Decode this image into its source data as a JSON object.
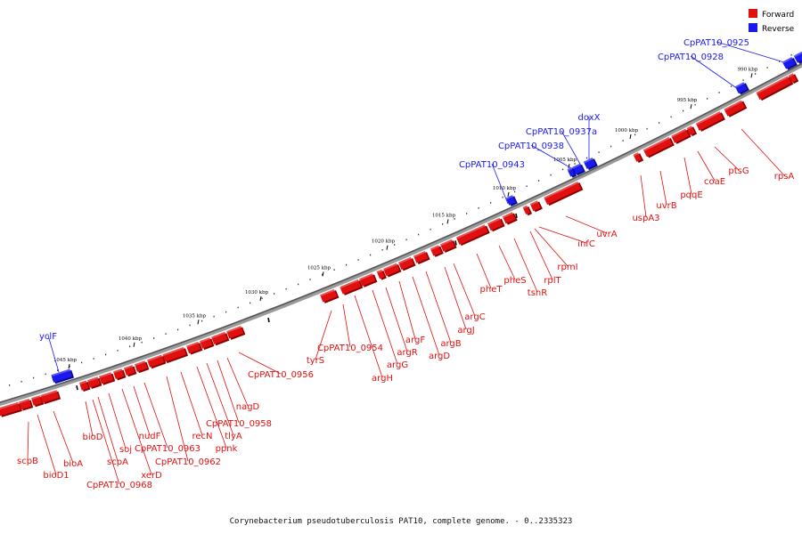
{
  "legend": {
    "forward": {
      "label": "Forward",
      "color": "#e01010"
    },
    "reverse": {
      "label": "Reverse",
      "color": "#1a1aee"
    }
  },
  "caption": "Corynebacterium pseudotuberculosis PAT10, complete genome. - 0..2335323",
  "ticks": [
    "990 kbp",
    "995 kbp",
    "1000 kbp",
    "1005 kbp",
    "1010 kbp",
    "1015 kbp",
    "1020 kbp",
    "1025 kbp",
    "1030 kbp",
    "1035 kbp",
    "1040 kbp",
    "1045 kbp"
  ],
  "reverse_genes": [
    "CpPAT10_0925",
    "CpPAT10_0928",
    "doxX",
    "CpPAT10_0937a",
    "CpPAT10_0938",
    "CpPAT10_0943",
    "yclF"
  ],
  "forward_genes": [
    "rpsA",
    "ptsG",
    "coaE",
    "pqqE",
    "uvrB",
    "uspA3",
    "uvrA",
    "infC",
    "rpmI",
    "rplT",
    "tsnR",
    "pheS",
    "pheT",
    "argC",
    "argJ",
    "argB",
    "argD",
    "argF",
    "argR",
    "argG",
    "argH",
    "CpPAT10_0954",
    "tyrS",
    "CpPAT10_0956",
    "nagD",
    "CpPAT10_0958",
    "tlyA",
    "ppnk",
    "recN",
    "CpPAT10_0962",
    "CpPAT10_0963",
    "nudF",
    "xerD",
    "soj",
    "scpA",
    "CpPAT10_0968",
    "bioD",
    "bioA",
    "bioD1",
    "scpB"
  ]
}
